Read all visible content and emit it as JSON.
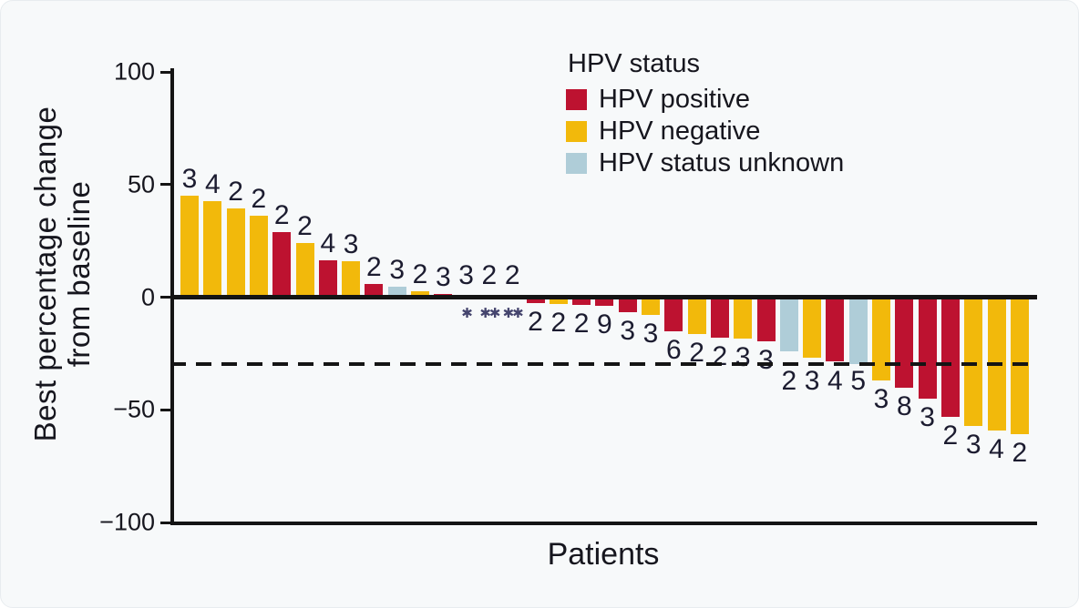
{
  "chart_data": {
    "type": "bar",
    "subtype": "waterfall",
    "xlabel": "Patients",
    "ylabel": "Best percentage change from baseline",
    "ylabel_line1": "Best percentage change",
    "ylabel_line2": "from baseline",
    "ylim": [
      -100,
      100
    ],
    "yticks": [
      100,
      50,
      0,
      -50,
      -100
    ],
    "ytick_labels": [
      "100",
      "50",
      "0",
      "−50",
      "−100"
    ],
    "grid": false,
    "reference_line_y": -30,
    "legend": {
      "title": "HPV status",
      "position": "top-center",
      "entries": [
        {
          "label": "HPV positive",
          "status": "positive",
          "color": "#BD1230"
        },
        {
          "label": "HPV negative",
          "status": "negative",
          "color": "#F2B90B"
        },
        {
          "label": "HPV status unknown",
          "status": "unknown",
          "color": "#AFCDD8"
        }
      ]
    },
    "colors": {
      "positive": "#BD1230",
      "negative": "#F2B90B",
      "unknown": "#AFCDD8"
    },
    "bars": [
      {
        "value": 45,
        "label": "3",
        "status": "negative"
      },
      {
        "value": 42.5,
        "label": "4",
        "status": "negative"
      },
      {
        "value": 39.5,
        "label": "2",
        "status": "negative"
      },
      {
        "value": 36,
        "label": "2",
        "status": "negative"
      },
      {
        "value": 29,
        "label": "2",
        "status": "positive"
      },
      {
        "value": 24,
        "label": "2",
        "status": "negative"
      },
      {
        "value": 16.5,
        "label": "4",
        "status": "positive"
      },
      {
        "value": 16,
        "label": "3",
        "status": "negative"
      },
      {
        "value": 6,
        "label": "2",
        "status": "positive"
      },
      {
        "value": 4.5,
        "label": "3",
        "status": "unknown"
      },
      {
        "value": 2.5,
        "label": "2",
        "status": "negative"
      },
      {
        "value": 1.5,
        "label": "3",
        "status": "positive"
      },
      {
        "value": 0,
        "label": "3",
        "status": "none",
        "marker": "✱"
      },
      {
        "value": 0,
        "label": "2",
        "status": "none",
        "marker": "✱✱"
      },
      {
        "value": 0,
        "label": "2",
        "status": "none",
        "marker": "✱✱"
      },
      {
        "value": -2.5,
        "label": "2",
        "status": "positive"
      },
      {
        "value": -3,
        "label": "2",
        "status": "negative"
      },
      {
        "value": -3.5,
        "label": "2",
        "status": "positive"
      },
      {
        "value": -4,
        "label": "9",
        "status": "positive"
      },
      {
        "value": -6.5,
        "label": "3",
        "status": "positive"
      },
      {
        "value": -8,
        "label": "3",
        "status": "negative"
      },
      {
        "value": -15,
        "label": "6",
        "status": "positive"
      },
      {
        "value": -16.5,
        "label": "2",
        "status": "negative"
      },
      {
        "value": -18,
        "label": "2",
        "status": "positive"
      },
      {
        "value": -18.5,
        "label": "3",
        "status": "negative"
      },
      {
        "value": -19.5,
        "label": "3",
        "status": "positive"
      },
      {
        "value": -24,
        "label": "2",
        "status": "unknown"
      },
      {
        "value": -27,
        "label": "3",
        "status": "negative"
      },
      {
        "value": -28.5,
        "label": "4",
        "status": "positive"
      },
      {
        "value": -29.5,
        "label": "5",
        "status": "unknown"
      },
      {
        "value": -37,
        "label": "3",
        "status": "negative"
      },
      {
        "value": -40,
        "label": "8",
        "status": "positive"
      },
      {
        "value": -45,
        "label": "3",
        "status": "positive"
      },
      {
        "value": -53,
        "label": "2",
        "status": "positive"
      },
      {
        "value": -57,
        "label": "3",
        "status": "negative"
      },
      {
        "value": -59,
        "label": "4",
        "status": "negative"
      },
      {
        "value": -61,
        "label": "2",
        "status": "negative"
      }
    ]
  }
}
